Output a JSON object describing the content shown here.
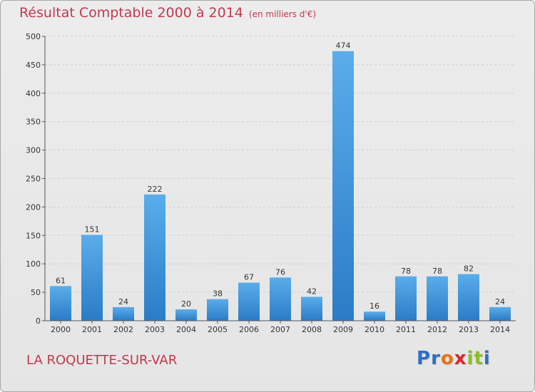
{
  "chart_data": {
    "type": "bar",
    "title": "Résultat Comptable 2000 à 2014",
    "subtitle": "(en milliers d'€)",
    "categories": [
      "2000",
      "2001",
      "2002",
      "2003",
      "2004",
      "2005",
      "2006",
      "2007",
      "2008",
      "2009",
      "2010",
      "2011",
      "2012",
      "2013",
      "2014"
    ],
    "values": [
      61,
      151,
      24,
      222,
      20,
      38,
      67,
      76,
      42,
      474,
      16,
      78,
      78,
      82,
      24
    ],
    "xlabel": "",
    "ylabel": "",
    "ylim": [
      0,
      500
    ],
    "yticks": [
      0,
      50,
      100,
      150,
      200,
      250,
      300,
      350,
      400,
      450,
      500
    ],
    "grid": true,
    "bar_color": "#4a9ee0"
  },
  "footer": {
    "commune": "LA ROQUETTE-SUR-VAR",
    "logo_letters": [
      "P",
      "r",
      "o",
      "x",
      "i",
      "t",
      "i"
    ],
    "logo_colors": [
      "#2e6fc4",
      "#2e6fc4",
      "#e8731a",
      "#d9262e",
      "#8abf2a",
      "#8abf2a",
      "#2e6fc4"
    ]
  },
  "colors": {
    "title": "#c4384e",
    "axis_text": "#333333"
  }
}
